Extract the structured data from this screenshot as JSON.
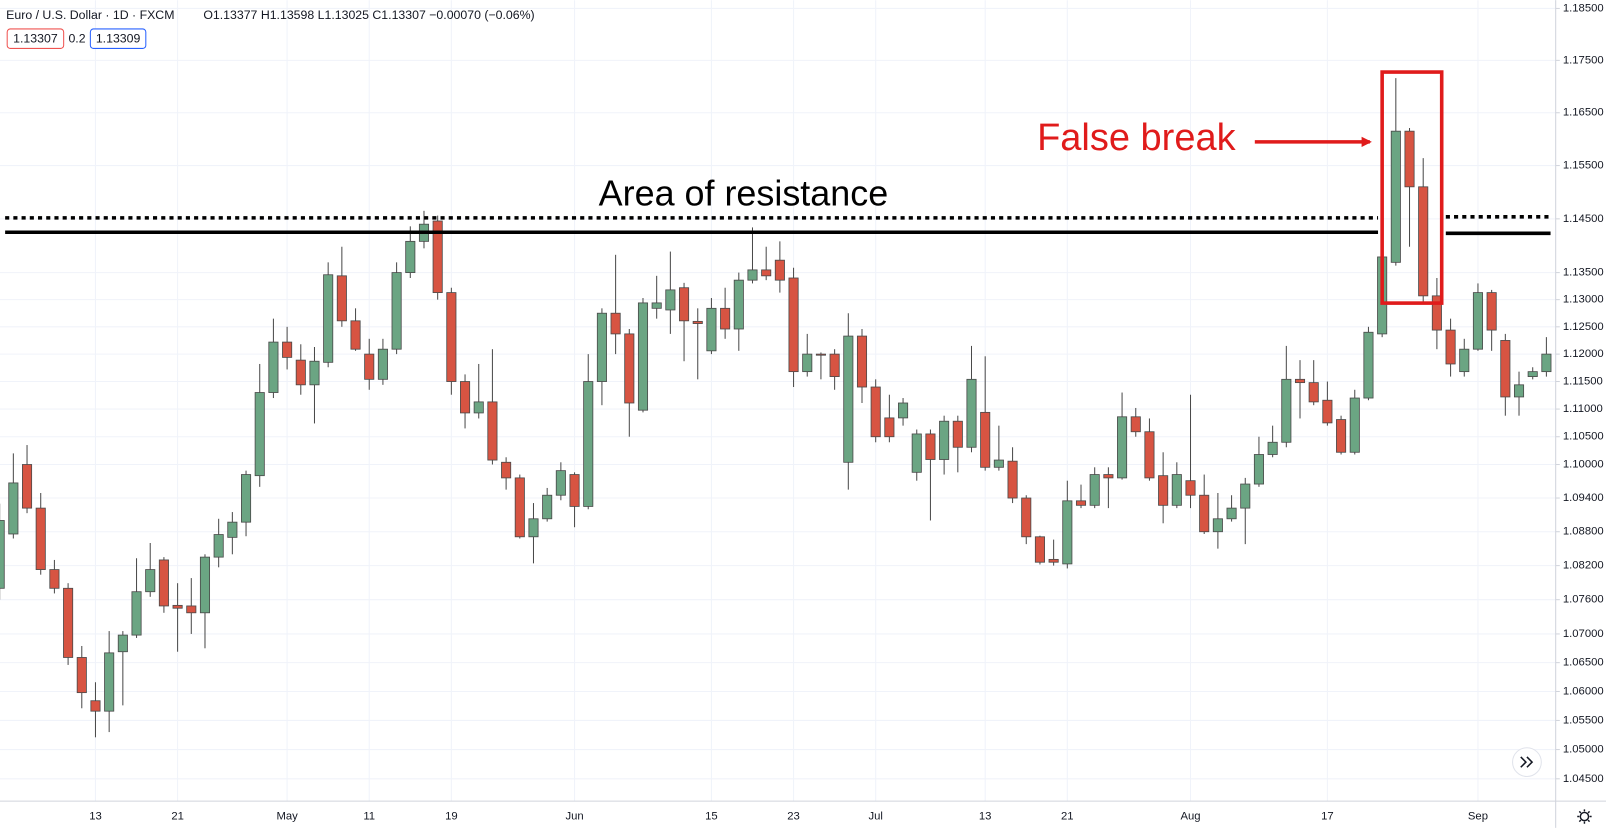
{
  "header": {
    "symbol": "Euro / U.S. Dollar · 1D · FXCM",
    "ohlc": "O1.13377 H1.13598 L1.13025 C1.13307 −0.00070 (−0.06%)",
    "bid": "1.13307",
    "spread": "0.2",
    "ask": "1.13309"
  },
  "chart_data": {
    "type": "candlestick",
    "annotations": [
      "Area of resistance",
      "False break"
    ],
    "categories": [
      null,
      null,
      null,
      null,
      null,
      null,
      null,
      "13",
      null,
      null,
      null,
      null,
      null,
      "21",
      null,
      null,
      null,
      null,
      null,
      null,
      null,
      "May",
      null,
      null,
      null,
      null,
      null,
      "11",
      null,
      null,
      null,
      null,
      null,
      "19",
      null,
      null,
      null,
      null,
      null,
      null,
      null,
      null,
      "Jun",
      null,
      null,
      null,
      null,
      null,
      null,
      null,
      null,
      null,
      "15",
      null,
      null,
      null,
      null,
      null,
      "23",
      null,
      null,
      null,
      null,
      null,
      "Jul",
      null,
      null,
      null,
      null,
      null,
      null,
      null,
      "13",
      null,
      null,
      null,
      null,
      null,
      "21",
      null,
      null,
      null,
      null,
      null,
      null,
      null,
      null,
      "Aug",
      null,
      null,
      null,
      null,
      null,
      null,
      null,
      null,
      null,
      "17",
      null,
      null,
      null,
      null,
      null,
      null,
      null,
      null,
      null,
      null,
      "Sep",
      null,
      null,
      null,
      null,
      null
    ],
    "open": [
      1.078,
      1.0876,
      1.1,
      1.0922,
      1.0813,
      1.078,
      1.0659,
      1.0584,
      1.0566,
      1.0669,
      1.0698,
      1.0774,
      1.083,
      1.075,
      1.0749,
      1.0737,
      1.0835,
      1.087,
      1.0897,
      1.098,
      1.113,
      1.1222,
      1.1189,
      1.1144,
      1.1185,
      1.1344,
      1.1261,
      1.12,
      1.1154,
      1.1209,
      1.135,
      1.1408,
      1.1446,
      1.1313,
      1.115,
      1.1093,
      1.1113,
      1.1004,
      1.0976,
      1.0871,
      1.0903,
      1.0945,
      1.0982,
      1.0925,
      1.115,
      1.1275,
      1.1237,
      1.1098,
      1.1284,
      1.1281,
      1.1322,
      1.126,
      1.1206,
      1.1284,
      1.1246,
      1.1336,
      1.1355,
      1.1373,
      1.134,
      1.1168,
      1.12,
      1.12,
      1.1004,
      1.1233,
      1.114,
      1.1084,
      1.1084,
      1.0986,
      1.1055,
      1.1009,
      1.1078,
      1.1031,
      1.1094,
      1.0995,
      1.1006,
      1.094,
      1.0871,
      1.0831,
      1.0823,
      1.0935,
      1.0927,
      1.0982,
      1.0976,
      1.1086,
      1.1059,
      1.098,
      1.0927,
      1.0971,
      1.0945,
      1.088,
      1.0903,
      1.0922,
      1.0965,
      1.1018,
      1.104,
      1.1154,
      1.1148,
      1.1116,
      1.1081,
      1.1022,
      1.112,
      1.1237,
      1.1369,
      1.1615,
      1.151,
      1.1307,
      1.1244,
      1.1168,
      1.1209,
      1.1313,
      1.1225,
      1.1122,
      1.1159,
      1.1168
    ],
    "high": [
      1.093,
      1.102,
      1.1035,
      1.0949,
      1.083,
      1.0789,
      1.0679,
      1.0616,
      1.0705,
      1.0705,
      1.0833,
      1.086,
      1.0835,
      1.0789,
      1.0798,
      1.084,
      1.0903,
      1.0915,
      1.0989,
      1.1182,
      1.1265,
      1.125,
      1.1218,
      1.1213,
      1.1369,
      1.1398,
      1.1284,
      1.1228,
      1.1228,
      1.1369,
      1.1436,
      1.1465,
      1.1456,
      1.1322,
      1.1163,
      1.1182,
      1.1209,
      1.1013,
      1.0982,
      1.0931,
      1.0958,
      1.1004,
      1.0986,
      1.12,
      1.1284,
      1.1383,
      1.1246,
      1.1303,
      1.1344,
      1.1389,
      1.1331,
      1.1284,
      1.1303,
      1.1322,
      1.135,
      1.1434,
      1.1398,
      1.1408,
      1.1359,
      1.1237,
      1.1203,
      1.1209,
      1.1275,
      1.1246,
      1.1154,
      1.1126,
      1.112,
      1.1063,
      1.1063,
      1.1088,
      1.1088,
      1.1215,
      1.1196,
      1.107,
      1.1031,
      1.0945,
      1.0873,
      1.0866,
      1.0971,
      1.0964,
      1.0995,
      1.0995,
      1.113,
      1.1102,
      1.1083,
      1.1022,
      1.1004,
      1.1126,
      1.0982,
      1.0949,
      1.0945,
      1.0976,
      1.105,
      1.107,
      1.1215,
      1.1189,
      1.1189,
      1.115,
      1.1088,
      1.1135,
      1.125,
      1.1398,
      1.1716,
      1.1621,
      1.1564,
      1.134,
      1.1265,
      1.1228,
      1.133,
      1.1318,
      1.1237,
      1.1168,
      1.1176,
      1.1231
    ],
    "low": [
      1.076,
      1.0868,
      1.0913,
      1.0804,
      1.0771,
      1.0646,
      1.0571,
      1.0521,
      1.053,
      1.0576,
      1.0693,
      1.0765,
      1.0737,
      1.0669,
      1.07,
      1.0675,
      1.0817,
      1.084,
      1.0872,
      1.096,
      1.112,
      1.1172,
      1.1126,
      1.1074,
      1.1176,
      1.125,
      1.1206,
      1.1135,
      1.1144,
      1.12,
      1.134,
      1.1395,
      1.13,
      1.1126,
      1.1065,
      1.1083,
      1.1,
      1.0955,
      1.0868,
      1.0824,
      1.0898,
      1.0936,
      1.0888,
      1.092,
      1.1107,
      1.12,
      1.105,
      1.1094,
      1.1265,
      1.1237,
      1.1187,
      1.1154,
      1.12,
      1.1228,
      1.1206,
      1.133,
      1.1336,
      1.1313,
      1.114,
      1.1159,
      1.1154,
      1.1135,
      1.0955,
      1.1111,
      1.104,
      1.104,
      1.107,
      1.0971,
      1.09,
      1.0982,
      1.0986,
      1.1022,
      1.0989,
      1.0989,
      1.0931,
      1.0858,
      1.0822,
      1.082,
      1.0815,
      1.0922,
      1.0922,
      1.0922,
      1.0973,
      1.105,
      1.0971,
      1.0895,
      1.0922,
      1.0922,
      1.0876,
      1.085,
      1.0898,
      1.0858,
      1.096,
      1.1013,
      1.1031,
      1.1083,
      1.1107,
      1.107,
      1.1018,
      1.1018,
      1.1116,
      1.1231,
      1.1363,
      1.1398,
      1.1295,
      1.1209,
      1.1159,
      1.1159,
      1.1206,
      1.1206,
      1.1088,
      1.1088,
      1.1154,
      1.1159
    ],
    "close": [
      1.09,
      1.0967,
      1.0922,
      1.0813,
      1.078,
      1.0659,
      1.0598,
      1.0566,
      1.0667,
      1.0698,
      1.0774,
      1.0813,
      1.0749,
      1.0745,
      1.0737,
      1.0835,
      1.0875,
      1.0897,
      1.0982,
      1.113,
      1.1222,
      1.1194,
      1.1144,
      1.1187,
      1.1346,
      1.1261,
      1.1209,
      1.1154,
      1.1209,
      1.135,
      1.1408,
      1.144,
      1.1313,
      1.115,
      1.1093,
      1.1113,
      1.1008,
      1.0976,
      1.0871,
      1.0903,
      1.0945,
      1.0989,
      1.0925,
      1.115,
      1.1275,
      1.1237,
      1.1111,
      1.1294,
      1.1294,
      1.1318,
      1.1261,
      1.1256,
      1.1284,
      1.1246,
      1.1336,
      1.1355,
      1.1344,
      1.1336,
      1.1168,
      1.12,
      1.1198,
      1.1159,
      1.1233,
      1.114,
      1.105,
      1.105,
      1.1111,
      1.1055,
      1.1009,
      1.1078,
      1.1031,
      1.1154,
      1.0995,
      1.1008,
      1.094,
      1.0871,
      1.0826,
      1.0826,
      1.0935,
      1.0927,
      1.0982,
      1.0976,
      1.1086,
      1.1059,
      1.0976,
      1.0927,
      1.0982,
      1.0945,
      1.088,
      1.0903,
      1.0922,
      1.0965,
      1.1018,
      1.104,
      1.1154,
      1.1148,
      1.1113,
      1.1075,
      1.1022,
      1.112,
      1.124,
      1.1379,
      1.1615,
      1.151,
      1.1307,
      1.1244,
      1.1182,
      1.1209,
      1.1313,
      1.1244,
      1.1122,
      1.1144,
      1.1168,
      1.12
    ],
    "up_color": "#6ba583",
    "down_color": "#d75442",
    "wick_color": "#4a4a4a",
    "log_scale": true,
    "grid": true,
    "ylim": [
      1.0412,
      1.1866
    ],
    "yticks": [
      {
        "value": 1.185,
        "label": "1.18500"
      },
      {
        "value": 1.175,
        "label": "1.17500"
      },
      {
        "value": 1.165,
        "label": "1.16500"
      },
      {
        "value": 1.155,
        "label": "1.15500"
      },
      {
        "value": 1.145,
        "label": "1.14500"
      },
      {
        "value": 1.135,
        "label": "1.13500"
      },
      {
        "value": 1.13,
        "label": "1.13000"
      },
      {
        "value": 1.125,
        "label": "1.12500"
      },
      {
        "value": 1.12,
        "label": "1.12000"
      },
      {
        "value": 1.115,
        "label": "1.11500"
      },
      {
        "value": 1.11,
        "label": "1.11000"
      },
      {
        "value": 1.105,
        "label": "1.10500"
      },
      {
        "value": 1.1,
        "label": "1.10000"
      },
      {
        "value": 1.094,
        "label": "1.09400"
      },
      {
        "value": 1.088,
        "label": "1.08800"
      },
      {
        "value": 1.082,
        "label": "1.08200"
      },
      {
        "value": 1.076,
        "label": "1.07600"
      },
      {
        "value": 1.07,
        "label": "1.07000"
      },
      {
        "value": 1.065,
        "label": "1.06500"
      },
      {
        "value": 1.06,
        "label": "1.06000"
      },
      {
        "value": 1.055,
        "label": "1.05500"
      },
      {
        "value": 1.05,
        "label": "1.05000"
      },
      {
        "value": 1.045,
        "label": "1.04500"
      }
    ]
  }
}
